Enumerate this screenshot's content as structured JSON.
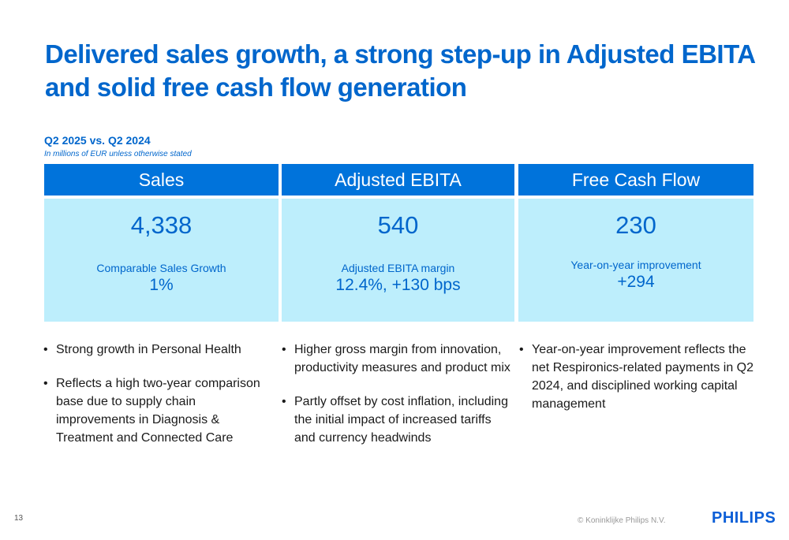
{
  "title": "Delivered sales growth, a strong step-up in Adjusted EBITA and solid free cash flow generation",
  "subtitle": "Q2 2025 vs. Q2 2024",
  "note": "In millions of EUR unless otherwise stated",
  "columns": [
    {
      "header": "Sales",
      "value": "4,338",
      "label": "Comparable Sales Growth",
      "metric": "1%",
      "bullets": [
        "Strong growth in Personal Health",
        "Reflects a high two-year comparison base due to supply chain improvements in Diagnosis & Treatment and Connected Care"
      ]
    },
    {
      "header": "Adjusted EBITA",
      "value": "540",
      "label": "Adjusted EBITA margin",
      "metric": "12.4%, +130 bps",
      "bullets": [
        "Higher gross margin from innovation, productivity measures and product mix",
        "Partly offset by cost inflation, including the initial impact of increased tariffs and currency headwinds"
      ]
    },
    {
      "header": "Free Cash Flow",
      "value": "230",
      "label": "Year-on-year improvement",
      "metric": "+294",
      "bullets": [
        "Year-on-year improvement reflects the net Respironics-related payments in Q2 2024, and disciplined working capital management"
      ]
    }
  ],
  "footer": {
    "page": "13",
    "copyright": "© Koninklijke Philips N.V.",
    "logo": "PHILIPS"
  },
  "colors": {
    "brand": "#0066cc",
    "header": "#0073db",
    "panel": "#bdeefc"
  }
}
